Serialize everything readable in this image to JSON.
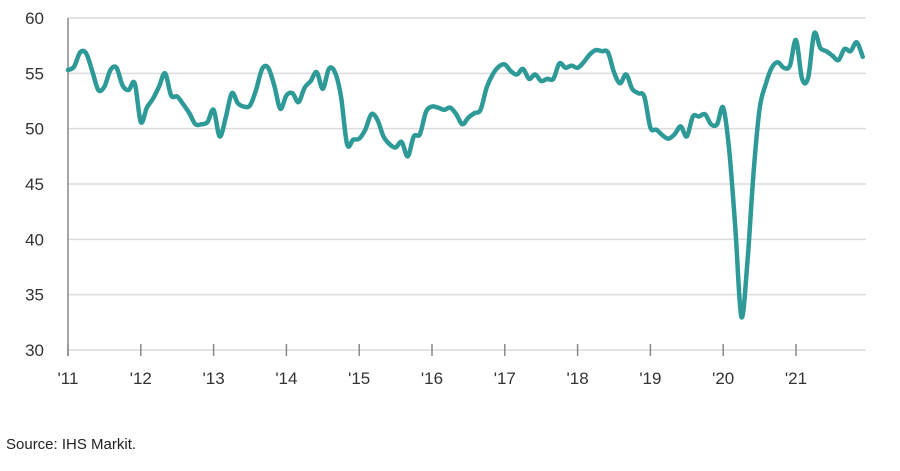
{
  "chart_data": {
    "type": "line",
    "title": "",
    "xlabel": "",
    "ylabel": "",
    "ylim": [
      30,
      60
    ],
    "yticks": [
      "30",
      "35",
      "40",
      "45",
      "50",
      "55",
      "60"
    ],
    "xticks": [
      "'11",
      "'12",
      "'13",
      "'14",
      "'15",
      "'16",
      "'17",
      "'18",
      "'19",
      "'20",
      "'21"
    ],
    "x_start": "2011-01",
    "frequency": "monthly",
    "grid": "horizontal",
    "color": "#2e9a98",
    "values": [
      55.3,
      55.6,
      56.9,
      56.8,
      55.2,
      53.5,
      53.8,
      55.3,
      55.5,
      53.9,
      53.5,
      54.1,
      50.6,
      51.9,
      52.7,
      53.8,
      55.0,
      53.0,
      52.9,
      52.2,
      51.4,
      50.4,
      50.4,
      50.6,
      51.7,
      49.3,
      51.0,
      53.2,
      52.3,
      52.0,
      52.1,
      53.5,
      55.4,
      55.5,
      53.9,
      51.8,
      53.0,
      53.2,
      52.4,
      53.7,
      54.3,
      55.1,
      53.6,
      55.4,
      55.1,
      52.9,
      48.6,
      49.0,
      49.1,
      49.9,
      51.3,
      50.8,
      49.3,
      48.6,
      48.3,
      48.8,
      47.5,
      49.3,
      49.5,
      51.5,
      52.0,
      51.9,
      51.7,
      51.9,
      51.3,
      50.4,
      51.0,
      51.4,
      51.7,
      53.7,
      54.9,
      55.6,
      55.8,
      55.2,
      54.9,
      55.4,
      54.5,
      54.9,
      54.3,
      54.5,
      54.5,
      55.9,
      55.5,
      55.7,
      55.5,
      56.0,
      56.7,
      57.1,
      57.0,
      56.9,
      55.1,
      54.1,
      54.9,
      53.6,
      53.2,
      52.9,
      50.1,
      49.9,
      49.4,
      49.1,
      49.5,
      50.2,
      49.3,
      51.1,
      51.1,
      51.3,
      50.4,
      50.4,
      51.9,
      48.0,
      41.0,
      33.0,
      38.0,
      46.0,
      51.8,
      54.0,
      55.5,
      56.0,
      55.5,
      55.7,
      58.0,
      54.5,
      54.6,
      58.6,
      57.3,
      57.0,
      56.6,
      56.2,
      57.2,
      57.0,
      57.8,
      56.5
    ]
  },
  "source": "Source: IHS Markit."
}
